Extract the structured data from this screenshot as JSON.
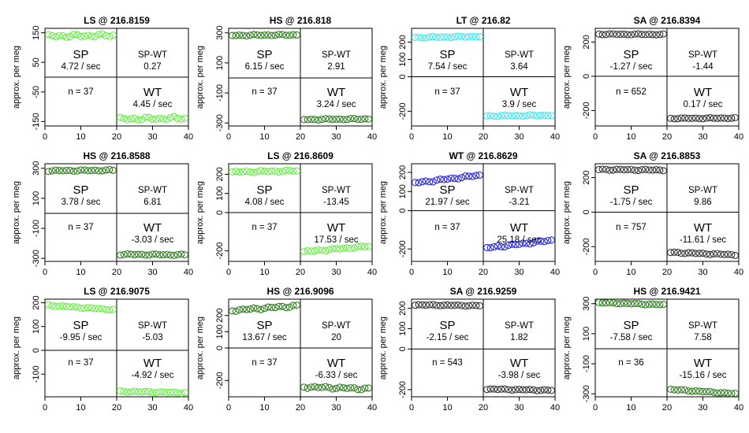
{
  "figure": {
    "ylabel": "approx. per meg",
    "quadrant_labels": {
      "sp": "SP",
      "sp_wt": "SP-WT",
      "wt": "WT"
    },
    "rate_unit": " / sec",
    "n_prefix": "n = "
  },
  "chart_data": [
    {
      "type": "scatter",
      "title": "LS @ 216.8159",
      "color": "#66ee44",
      "xlim": [
        0,
        40
      ],
      "xticks": [
        0,
        10,
        20,
        30,
        40
      ],
      "ylim": [
        -165,
        165
      ],
      "yticks": [
        -150,
        -50,
        50,
        150
      ],
      "sp_level": 140,
      "wt_level": -140,
      "sp_trend": 3,
      "wt_trend": 3,
      "wobble": 6,
      "sp_rate": "4.72",
      "sp_wt": "0.27",
      "wt_rate": "4.45",
      "n": "37"
    },
    {
      "type": "scatter",
      "title": "HS @ 216.818",
      "color": "#2e7d1e",
      "xlim": [
        0,
        40
      ],
      "xticks": [
        0,
        10,
        20,
        30,
        40
      ],
      "ylim": [
        -320,
        330
      ],
      "yticks": [
        -300,
        -100,
        100,
        300
      ],
      "sp_level": 285,
      "wt_level": -275,
      "sp_trend": 4,
      "wt_trend": 4,
      "wobble": 5,
      "sp_rate": "6.15",
      "sp_wt": "2.91",
      "wt_rate": "3.24",
      "n": "37"
    },
    {
      "type": "scatter",
      "title": "LT @ 216.82",
      "color": "#44e5ee",
      "xlim": [
        0,
        40
      ],
      "xticks": [
        0,
        10,
        20,
        30,
        40
      ],
      "ylim": [
        -285,
        280
      ],
      "yticks": [
        -200,
        0,
        100,
        200
      ],
      "sp_level": 230,
      "wt_level": -225,
      "sp_trend": 6,
      "wt_trend": 4,
      "wobble": 4,
      "sp_rate": "7.54",
      "sp_wt": "3.64",
      "wt_rate": "3.9",
      "n": "37"
    },
    {
      "type": "scatter",
      "title": "SA @ 216.8394",
      "color": "#333333",
      "xlim": [
        0,
        40
      ],
      "xticks": [
        0,
        10,
        20,
        30,
        40
      ],
      "ylim": [
        -290,
        280
      ],
      "yticks": [
        -200,
        0,
        200
      ],
      "sp_level": 245,
      "wt_level": -245,
      "sp_trend": -2,
      "wt_trend": 2,
      "wobble": 3,
      "sp_rate": "-1.27",
      "sp_wt": "-1.44",
      "wt_rate": "0.17",
      "n": "652"
    },
    {
      "type": "scatter",
      "title": "HS @ 216.8588",
      "color": "#2e7d1e",
      "xlim": [
        0,
        40
      ],
      "xticks": [
        0,
        10,
        20,
        30,
        40
      ],
      "ylim": [
        -320,
        330
      ],
      "yticks": [
        -300,
        -100,
        100,
        300
      ],
      "sp_level": 285,
      "wt_level": -275,
      "sp_trend": 3,
      "wt_trend": -3,
      "wobble": 5,
      "sp_rate": "3.78",
      "sp_wt": "6.81",
      "wt_rate": "-3.03",
      "n": "37"
    },
    {
      "type": "scatter",
      "title": "LS @ 216.8609",
      "color": "#66ee44",
      "xlim": [
        0,
        40
      ],
      "xticks": [
        0,
        10,
        20,
        30,
        40
      ],
      "ylim": [
        -255,
        255
      ],
      "yticks": [
        -200,
        0,
        100,
        200
      ],
      "sp_level": 215,
      "wt_level": -190,
      "sp_trend": 6,
      "wt_trend": 28,
      "wobble": 5,
      "sp_rate": "4.08",
      "sp_wt": "-13.45",
      "wt_rate": "17.53",
      "n": "37"
    },
    {
      "type": "scatter",
      "title": "WT @ 216.8629",
      "color": "#2222dd",
      "xlim": [
        0,
        40
      ],
      "xticks": [
        0,
        10,
        20,
        30,
        40
      ],
      "ylim": [
        -265,
        245
      ],
      "yticks": [
        -200,
        0,
        100,
        200
      ],
      "sp_level": 165,
      "wt_level": -175,
      "sp_trend": 40,
      "wt_trend": 40,
      "wobble": 6,
      "sp_rate": "21.97",
      "sp_wt": "-3.21",
      "wt_rate": "25.18",
      "n": "37"
    },
    {
      "type": "scatter",
      "title": "SA @ 216.8853",
      "color": "#333333",
      "xlim": [
        0,
        40
      ],
      "xticks": [
        0,
        10,
        20,
        30,
        40
      ],
      "ylim": [
        -285,
        280
      ],
      "yticks": [
        -200,
        0,
        200
      ],
      "sp_level": 245,
      "wt_level": -240,
      "sp_trend": -3,
      "wt_trend": -14,
      "wobble": 4,
      "sp_rate": "-1.75",
      "sp_wt": "9.86",
      "wt_rate": "-11.61",
      "n": "757"
    },
    {
      "type": "scatter",
      "title": "LS @ 216.9075",
      "color": "#66ee44",
      "xlim": [
        0,
        40
      ],
      "xticks": [
        0,
        10,
        20,
        30,
        40
      ],
      "ylim": [
        -195,
        215
      ],
      "yticks": [
        -100,
        0,
        100,
        200
      ],
      "sp_level": 180,
      "wt_level": -175,
      "sp_trend": -18,
      "wt_trend": -5,
      "wobble": 3,
      "sp_rate": "-9.95",
      "sp_wt": "-5.03",
      "wt_rate": "-4.92",
      "n": "37"
    },
    {
      "type": "scatter",
      "title": "HS @ 216.9096",
      "color": "#2e7d1e",
      "xlim": [
        0,
        40
      ],
      "xticks": [
        0,
        10,
        20,
        30,
        40
      ],
      "ylim": [
        -300,
        300
      ],
      "yticks": [
        -200,
        0,
        100,
        200
      ],
      "sp_level": 245,
      "wt_level": -245,
      "sp_trend": 28,
      "wt_trend": -12,
      "wobble": 8,
      "sp_rate": "13.67",
      "sp_wt": "20",
      "wt_rate": "-6.33",
      "n": "37"
    },
    {
      "type": "scatter",
      "title": "SA @ 216.9259",
      "color": "#333333",
      "xlim": [
        0,
        40
      ],
      "xticks": [
        0,
        10,
        20,
        30,
        40
      ],
      "ylim": [
        -235,
        245
      ],
      "yticks": [
        -200,
        0,
        100,
        200
      ],
      "sp_level": 215,
      "wt_level": -200,
      "sp_trend": -4,
      "wt_trend": -6,
      "wobble": 3,
      "sp_rate": "-2.15",
      "sp_wt": "1.82",
      "wt_rate": "-3.98",
      "n": "543"
    },
    {
      "type": "scatter",
      "title": "HS @ 216.9421",
      "color": "#2e7d1e",
      "xlim": [
        0,
        40
      ],
      "xticks": [
        0,
        10,
        20,
        30,
        40
      ],
      "ylim": [
        -320,
        330
      ],
      "yticks": [
        -300,
        -100,
        100,
        300
      ],
      "sp_level": 300,
      "wt_level": -285,
      "sp_trend": -14,
      "wt_trend": -28,
      "wobble": 4,
      "sp_rate": "-7.58",
      "sp_wt": "7.58",
      "wt_rate": "-15.16",
      "n": "36"
    }
  ]
}
